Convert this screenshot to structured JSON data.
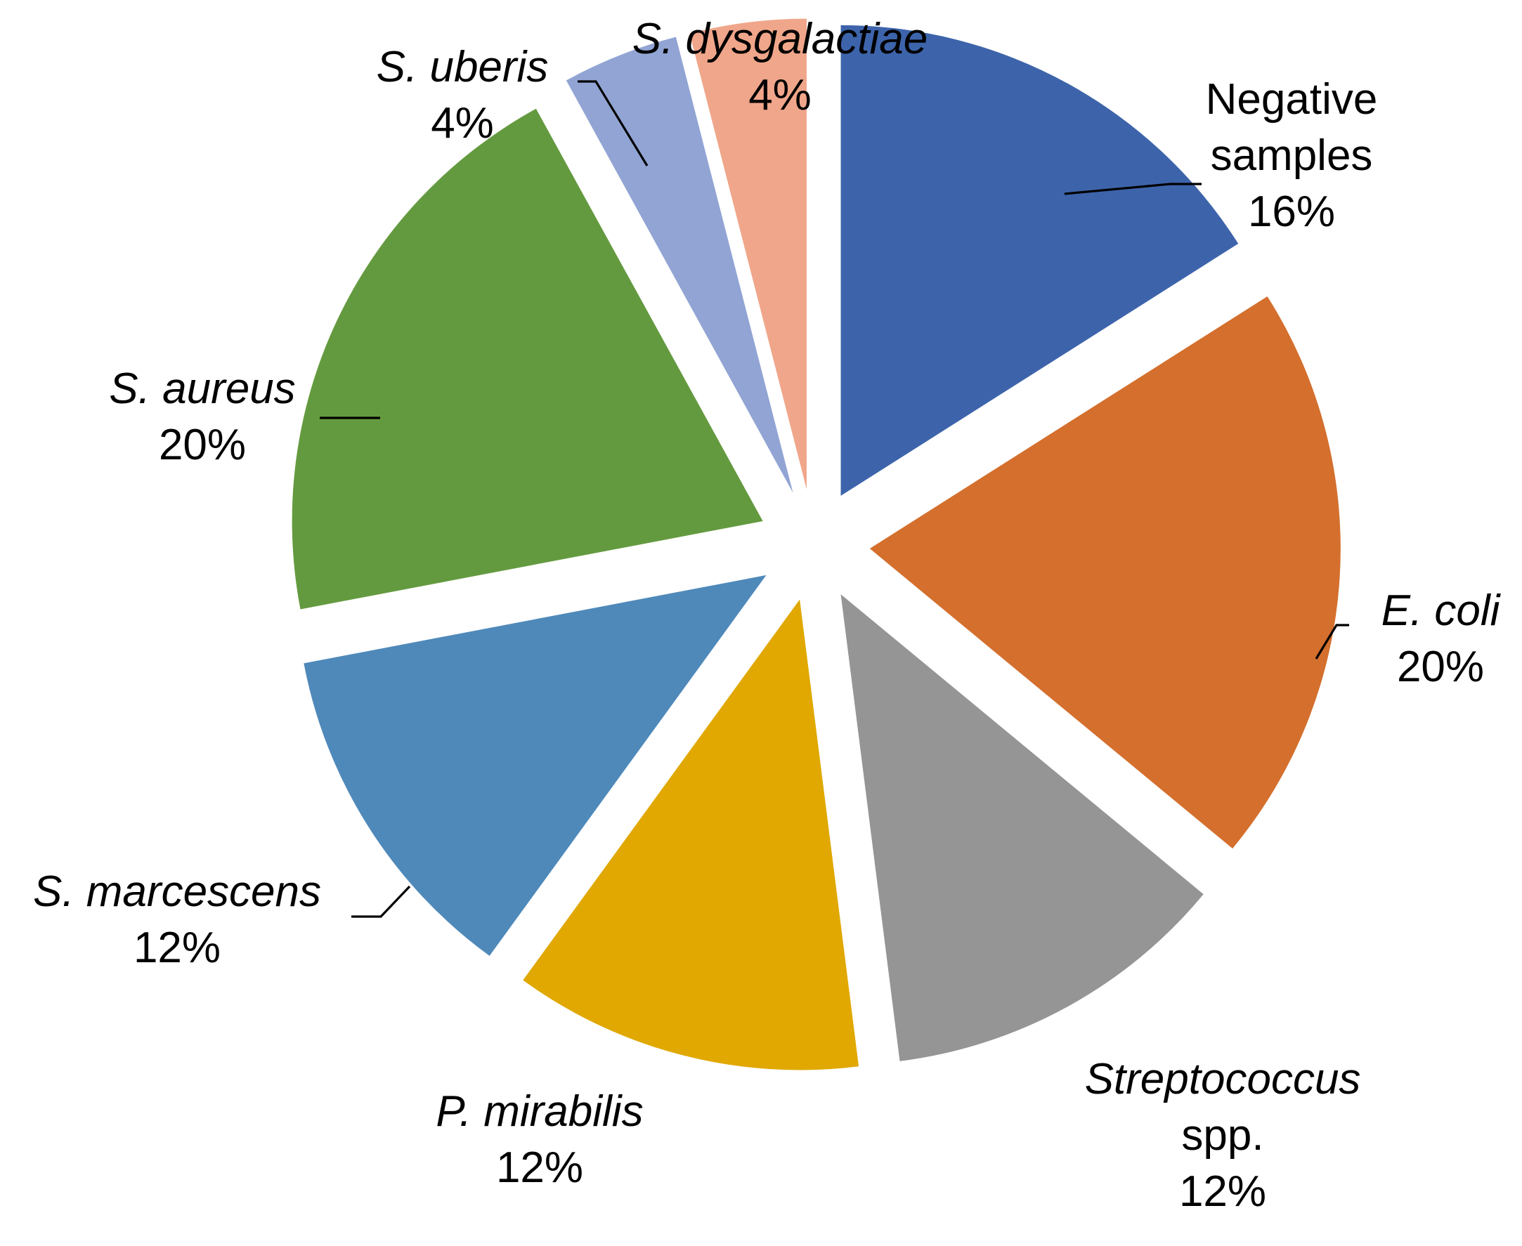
{
  "chart_data": {
    "type": "pie",
    "title": "",
    "legend": "none",
    "slices": [
      {
        "label_lines": [
          "Negative",
          "samples"
        ],
        "italic": false,
        "value": 16,
        "pct_label": "16%",
        "color": "#3D64AB"
      },
      {
        "label_lines": [
          "E. coli"
        ],
        "italic": true,
        "value": 20,
        "pct_label": "20%",
        "color": "#D46F2D"
      },
      {
        "label_lines": [
          "Streptococcus",
          "spp."
        ],
        "italic": true,
        "italic_lines": [
          true,
          false
        ],
        "value": 12,
        "pct_label": "12%",
        "color": "#959595"
      },
      {
        "label_lines": [
          "P. mirabilis"
        ],
        "italic": true,
        "value": 12,
        "pct_label": "12%",
        "color": "#E0A800"
      },
      {
        "label_lines": [
          "S. marcescens"
        ],
        "italic": true,
        "value": 12,
        "pct_label": "12%",
        "color": "#4F89BA"
      },
      {
        "label_lines": [
          "S. aureus"
        ],
        "italic": true,
        "value": 20,
        "pct_label": "20%",
        "color": "#649A3F"
      },
      {
        "label_lines": [
          "S. uberis"
        ],
        "italic": true,
        "value": 4,
        "pct_label": "4%",
        "color": "#91A4D4"
      },
      {
        "label_lines": [
          "S. dysgalactiae"
        ],
        "italic": true,
        "value": 4,
        "pct_label": "4%",
        "color": "#F0A68A"
      }
    ]
  }
}
